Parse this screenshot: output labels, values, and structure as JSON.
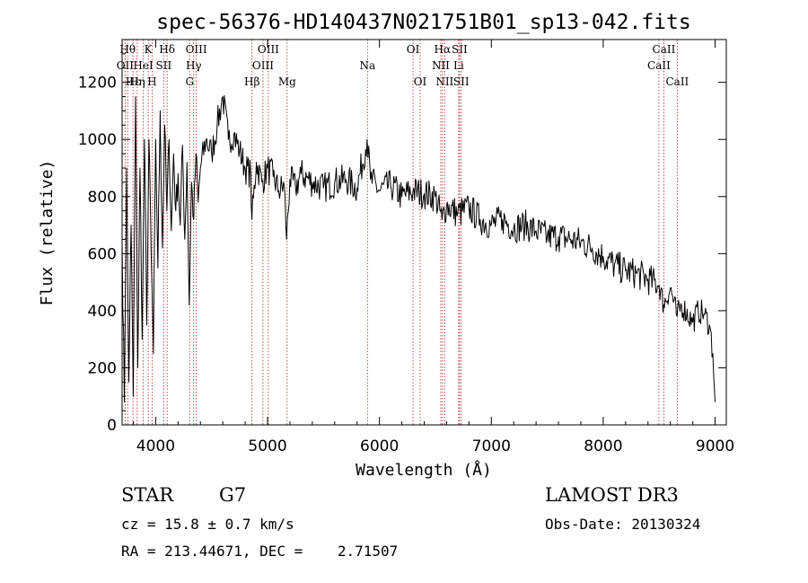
{
  "chart_data": {
    "type": "line",
    "title": "spec-56376-HD140437N021751B01_sp13-042.fits",
    "xlabel": "Wavelength (Å)",
    "ylabel": "Flux (relative)",
    "xlim": [
      3700,
      9100
    ],
    "ylim": [
      0,
      1350
    ],
    "xticks": [
      4000,
      5000,
      6000,
      7000,
      8000,
      9000
    ],
    "yticks": [
      0,
      200,
      400,
      600,
      800,
      1000,
      1200
    ],
    "grid": false,
    "series": [
      {
        "name": "flux",
        "x": [
          3700,
          3720,
          3740,
          3760,
          3780,
          3800,
          3820,
          3840,
          3860,
          3880,
          3900,
          3920,
          3940,
          3960,
          3980,
          4000,
          4020,
          4040,
          4060,
          4080,
          4100,
          4120,
          4140,
          4160,
          4180,
          4200,
          4220,
          4240,
          4260,
          4280,
          4300,
          4320,
          4340,
          4360,
          4380,
          4400,
          4450,
          4500,
          4550,
          4600,
          4650,
          4700,
          4750,
          4800,
          4850,
          4860,
          4900,
          4950,
          5000,
          5050,
          5100,
          5150,
          5170,
          5200,
          5250,
          5300,
          5400,
          5500,
          5600,
          5700,
          5800,
          5890,
          5920,
          6000,
          6100,
          6200,
          6300,
          6400,
          6500,
          6560,
          6600,
          6700,
          6800,
          6900,
          7000,
          7100,
          7200,
          7300,
          7400,
          7500,
          7600,
          7700,
          7800,
          7900,
          8000,
          8100,
          8200,
          8300,
          8400,
          8500,
          8540,
          8600,
          8660,
          8700,
          8800,
          8850,
          8900,
          8950,
          8980,
          9000
        ],
        "values": [
          650,
          80,
          900,
          150,
          700,
          100,
          1150,
          200,
          900,
          300,
          1000,
          350,
          1000,
          600,
          250,
          1000,
          550,
          1100,
          620,
          1050,
          750,
          1000,
          680,
          950,
          750,
          880,
          700,
          980,
          650,
          920,
          420,
          850,
          720,
          950,
          780,
          900,
          1000,
          950,
          1050,
          1150,
          1000,
          1020,
          960,
          900,
          880,
          720,
          920,
          850,
          900,
          870,
          820,
          840,
          650,
          860,
          830,
          880,
          850,
          830,
          850,
          860,
          830,
          1000,
          860,
          820,
          840,
          800,
          820,
          810,
          800,
          720,
          770,
          740,
          760,
          720,
          700,
          720,
          690,
          700,
          680,
          660,
          660,
          650,
          640,
          620,
          590,
          560,
          540,
          530,
          510,
          490,
          420,
          480,
          380,
          420,
          360,
          400,
          390,
          350,
          250,
          80
        ]
      }
    ],
    "lines": [
      {
        "label": "Hθ",
        "x": 3750,
        "row": 1
      },
      {
        "label": "K",
        "x": 3934,
        "row": 1
      },
      {
        "label": "Hδ",
        "x": 4102,
        "row": 1
      },
      {
        "label": "OIII",
        "x": 4363,
        "row": 1
      },
      {
        "label": "OIII",
        "x": 5007,
        "row": 1
      },
      {
        "label": "OI",
        "x": 6300,
        "row": 1
      },
      {
        "label": "Hα",
        "x": 6563,
        "row": 1
      },
      {
        "label": "SII",
        "x": 6716,
        "row": 1
      },
      {
        "label": "CaII",
        "x": 8542,
        "row": 1
      },
      {
        "label": "OII",
        "x": 3727,
        "row": 2
      },
      {
        "label": "HeI",
        "x": 3889,
        "row": 2
      },
      {
        "label": "SII",
        "x": 4072,
        "row": 2
      },
      {
        "label": "Hγ",
        "x": 4340,
        "row": 2
      },
      {
        "label": "OIII",
        "x": 4959,
        "row": 2
      },
      {
        "label": "Na",
        "x": 5893,
        "row": 2
      },
      {
        "label": "NII",
        "x": 6548,
        "row": 2
      },
      {
        "label": "Li",
        "x": 6708,
        "row": 2
      },
      {
        "label": "CaII",
        "x": 8498,
        "row": 2
      },
      {
        "label": "Hε",
        "x": 3797,
        "row": 3
      },
      {
        "label": "Hη",
        "x": 3835,
        "row": 3
      },
      {
        "label": "H",
        "x": 3968,
        "row": 3
      },
      {
        "label": "G",
        "x": 4304,
        "row": 3
      },
      {
        "label": "Hβ",
        "x": 4861,
        "row": 3
      },
      {
        "label": "Mg",
        "x": 5175,
        "row": 3
      },
      {
        "label": "OI",
        "x": 6364,
        "row": 3
      },
      {
        "label": "NII",
        "x": 6583,
        "row": 3
      },
      {
        "label": "SII",
        "x": 6731,
        "row": 3
      },
      {
        "label": "CaII",
        "x": 8662,
        "row": 3
      }
    ]
  },
  "info": {
    "class": "STAR",
    "subclass": "G7",
    "survey": "LAMOST DR3",
    "cz": "cz = 15.8 ± 0.7 km/s",
    "obs_date": "Obs-Date: 20130324",
    "radec": "RA = 213.44671, DEC =    2.71507"
  }
}
